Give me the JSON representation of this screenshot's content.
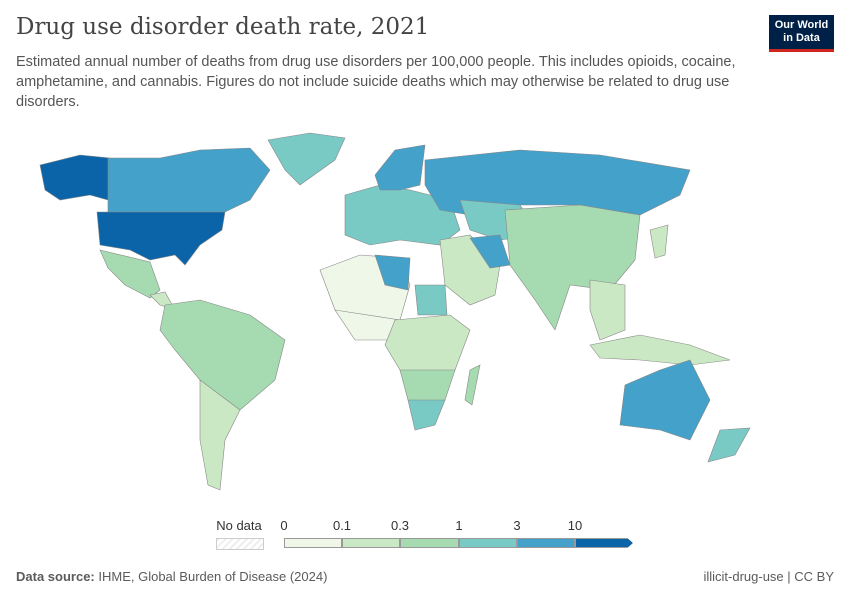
{
  "header": {
    "title": "Drug use disorder death rate, 2021",
    "subtitle": "Estimated annual number of deaths from drug use disorders per 100,000 people. This includes opioids, cocaine, amphetamine, and cannabis. Figures do not include suicide deaths which may otherwise be related to drug use disorders.",
    "logo": "Our World in Data"
  },
  "legend": {
    "no_data": "No data",
    "ticks": [
      "0",
      "0.1",
      "0.3",
      "1",
      "3",
      "10"
    ],
    "colors": [
      "#eff7e8",
      "#cbe8c4",
      "#a6dab1",
      "#79c9c4",
      "#44a1ca",
      "#0b64a8"
    ],
    "no_data_color": "#eeeeee"
  },
  "regions": [
    {
      "name": "Alaska (United States)",
      "bucket": 5
    },
    {
      "name": "Canada",
      "bucket": 4
    },
    {
      "name": "United States",
      "bucket": 5
    },
    {
      "name": "Greenland",
      "bucket": 3
    },
    {
      "name": "Mexico",
      "bucket": 2
    },
    {
      "name": "Central America",
      "bucket": 1
    },
    {
      "name": "South America",
      "bucket": 2
    },
    {
      "name": "Southern Cone",
      "bucket": 1
    },
    {
      "name": "Europe",
      "bucket": 3
    },
    {
      "name": "Scandinavia",
      "bucket": 4
    },
    {
      "name": "Russia",
      "bucket": 4
    },
    {
      "name": "Central Asia",
      "bucket": 3
    },
    {
      "name": "North Africa",
      "bucket": 0
    },
    {
      "name": "West Africa",
      "bucket": 0
    },
    {
      "name": "Libya",
      "bucket": 4
    },
    {
      "name": "Sudan",
      "bucket": 3
    },
    {
      "name": "Central & East Africa",
      "bucket": 1
    },
    {
      "name": "Southern Africa",
      "bucket": 2
    },
    {
      "name": "South Africa",
      "bucket": 3
    },
    {
      "name": "Madagascar",
      "bucket": 2
    },
    {
      "name": "Middle East",
      "bucket": 1
    },
    {
      "name": "Iran",
      "bucket": 4
    },
    {
      "name": "China & India",
      "bucket": 2
    },
    {
      "name": "Southeast Asia",
      "bucket": 1
    },
    {
      "name": "Indonesia",
      "bucket": 1
    },
    {
      "name": "Japan",
      "bucket": 1
    },
    {
      "name": "Australia",
      "bucket": 4
    },
    {
      "name": "New Zealand",
      "bucket": 3
    }
  ],
  "footer": {
    "source_label": "Data source:",
    "source": "IHME, Global Burden of Disease (2024)",
    "right": "illicit-drug-use | CC BY"
  }
}
